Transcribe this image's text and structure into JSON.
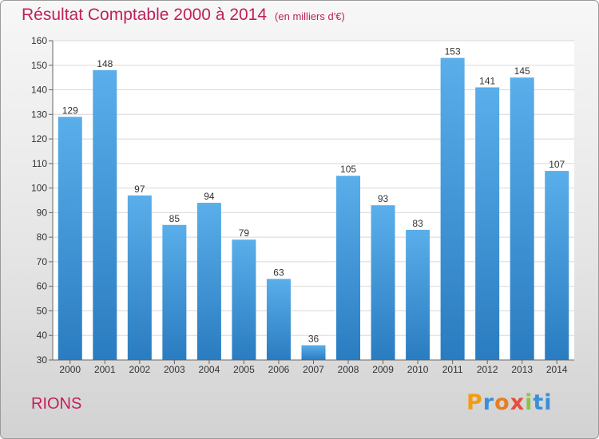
{
  "header": {
    "title": "Résultat Comptable 2000 à 2014",
    "subtitle": "(en milliers d'€)"
  },
  "footer": {
    "town": "RIONS",
    "logo": [
      "P",
      "r",
      "o",
      "x",
      "i",
      "ti"
    ]
  },
  "colors": {
    "title": "#c0205c",
    "bar_top": "#5aaeea",
    "bar_bottom": "#2a7cc0",
    "grid": "#d8d8d8"
  },
  "chart_data": {
    "type": "bar",
    "title": "Résultat Comptable 2000 à 2014",
    "subtitle": "(en milliers d'€)",
    "categories": [
      "2000",
      "2001",
      "2002",
      "2003",
      "2004",
      "2005",
      "2006",
      "2007",
      "2008",
      "2009",
      "2010",
      "2011",
      "2012",
      "2013",
      "2014"
    ],
    "values": [
      129,
      148,
      97,
      85,
      94,
      79,
      63,
      36,
      105,
      93,
      83,
      153,
      141,
      145,
      107
    ],
    "ylim": [
      30,
      160
    ],
    "yticks": [
      30,
      40,
      50,
      60,
      70,
      80,
      90,
      100,
      110,
      120,
      130,
      140,
      150,
      160
    ],
    "grid": true,
    "data_labels": true
  }
}
